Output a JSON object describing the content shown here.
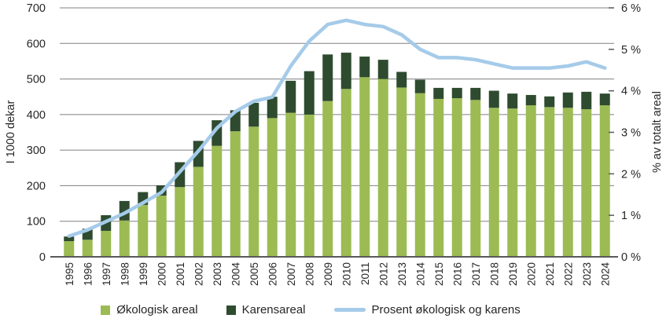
{
  "chart_data": {
    "type": "bar",
    "subtype": "stacked-bar-with-line-combo",
    "title": "",
    "categories": [
      "1995",
      "1996",
      "1997",
      "1998",
      "1999",
      "2000",
      "2001",
      "2002",
      "2003",
      "2004",
      "2005",
      "2006",
      "2007",
      "2008",
      "2009",
      "2010",
      "2011",
      "2012",
      "2013",
      "2014",
      "2015",
      "2016",
      "2017",
      "2018",
      "2019",
      "2020",
      "2021",
      "2022",
      "2023",
      "2024"
    ],
    "series": [
      {
        "name": "Økologisk areal",
        "type": "bar",
        "stack": "areal",
        "axis": "left",
        "color": "#9CBB53",
        "values": [
          44,
          48,
          73,
          102,
          146,
          172,
          196,
          253,
          312,
          353,
          366,
          390,
          405,
          400,
          438,
          472,
          505,
          500,
          476,
          460,
          444,
          446,
          441,
          419,
          417,
          426,
          421,
          419,
          415,
          426
        ]
      },
      {
        "name": "Karensareal",
        "type": "bar",
        "stack": "areal",
        "axis": "left",
        "color": "#2E4B30",
        "values": [
          13,
          31,
          44,
          55,
          36,
          29,
          70,
          73,
          72,
          59,
          67,
          60,
          90,
          122,
          131,
          102,
          58,
          54,
          44,
          38,
          31,
          29,
          34,
          48,
          42,
          29,
          30,
          43,
          49,
          33
        ]
      },
      {
        "name": "Prosent økologisk og karens",
        "type": "line",
        "axis": "right",
        "color": "#A5CBE9",
        "values": [
          0.5,
          0.65,
          0.85,
          1.05,
          1.3,
          1.55,
          2.05,
          2.55,
          3.1,
          3.5,
          3.75,
          3.85,
          4.6,
          5.2,
          5.6,
          5.7,
          5.6,
          5.55,
          5.35,
          5.0,
          4.8,
          4.8,
          4.75,
          4.65,
          4.55,
          4.55,
          4.55,
          4.6,
          4.7,
          4.55
        ]
      }
    ],
    "left_axis": {
      "label": "I 1000 dekar",
      "min": 0,
      "max": 700,
      "tick_step": 100,
      "ticks": [
        "0",
        "100",
        "200",
        "300",
        "400",
        "500",
        "600",
        "700"
      ]
    },
    "right_axis": {
      "label": "% av totalt areal",
      "min": 0,
      "max": 6,
      "tick_step": 1,
      "ticks": [
        "0 %",
        "1 %",
        "2 %",
        "3 %",
        "4 %",
        "5 %",
        "6 %"
      ]
    },
    "grid": true,
    "legend_position": "bottom"
  },
  "colors": {
    "background": "#FFFFFF",
    "gridline": "#808080",
    "axis_line": "#595959",
    "tick_mark": "#595959",
    "text": "#262626"
  }
}
